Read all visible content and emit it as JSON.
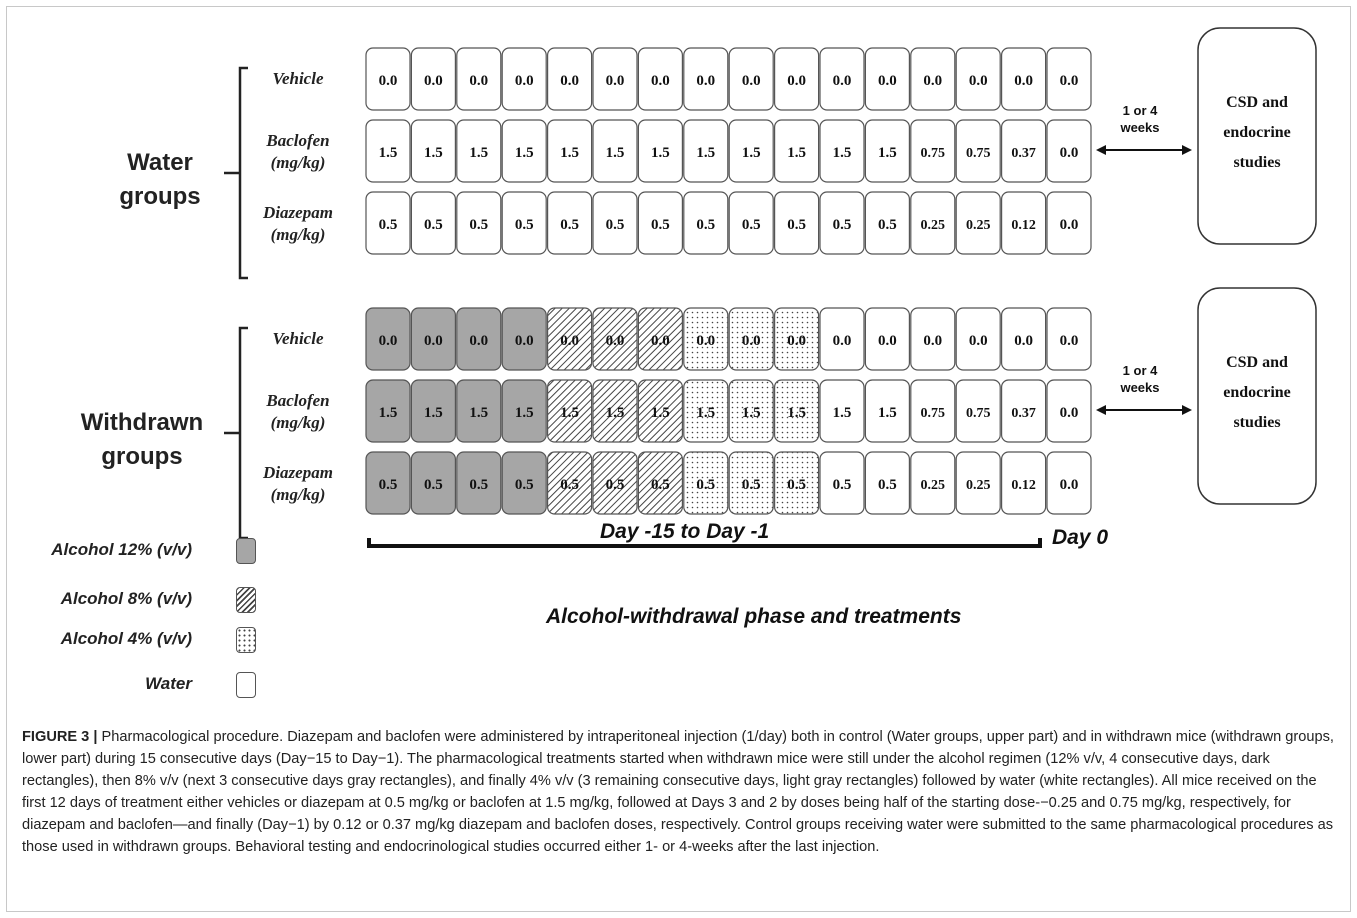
{
  "legend": [
    {
      "label": "Alcohol 12% (v/v)",
      "fill": "#a6a6a6",
      "pattern": "solid"
    },
    {
      "label": "Alcohol  8% (v/v)",
      "fill": "#ffffff",
      "pattern": "hatch"
    },
    {
      "label": "Alcohol 4% (v/v)",
      "fill": "#ffffff",
      "pattern": "dots"
    },
    {
      "label": "Water",
      "fill": "#ffffff",
      "pattern": "none"
    }
  ],
  "groups": [
    {
      "label_line1": "Water",
      "label_line2": "groups",
      "gap_line1": "1 or 4",
      "gap_line2": "weeks",
      "study_line1": "CSD and",
      "study_line2": "endocrine",
      "study_line3": "studies",
      "rows": [
        {
          "line1": "Vehicle",
          "line2": "",
          "values": [
            "0.0",
            "0.0",
            "0.0",
            "0.0",
            "0.0",
            "0.0",
            "0.0",
            "0.0",
            "0.0",
            "0.0",
            "0.0",
            "0.0",
            "0.0",
            "0.0",
            "0.0",
            "0.0"
          ]
        },
        {
          "line1": "Baclofen",
          "line2": "(mg/kg)",
          "values": [
            "1.5",
            "1.5",
            "1.5",
            "1.5",
            "1.5",
            "1.5",
            "1.5",
            "1.5",
            "1.5",
            "1.5",
            "1.5",
            "1.5",
            "0.75",
            "0.75",
            "0.37",
            "0.0"
          ]
        },
        {
          "line1": "Diazepam",
          "line2": "(mg/kg)",
          "values": [
            "0.5",
            "0.5",
            "0.5",
            "0.5",
            "0.5",
            "0.5",
            "0.5",
            "0.5",
            "0.5",
            "0.5",
            "0.5",
            "0.5",
            "0.25",
            "0.25",
            "0.12",
            "0.0"
          ]
        }
      ],
      "cell_patterns": [
        "none",
        "none",
        "none",
        "none",
        "none",
        "none",
        "none",
        "none",
        "none",
        "none",
        "none",
        "none",
        "none",
        "none",
        "none",
        "none"
      ]
    },
    {
      "label_line1": "Withdrawn",
      "label_line2": "groups",
      "gap_line1": "1 or 4",
      "gap_line2": "weeks",
      "study_line1": "CSD and",
      "study_line2": "endocrine",
      "study_line3": "studies",
      "rows": [
        {
          "line1": "Vehicle",
          "line2": "",
          "values": [
            "0.0",
            "0.0",
            "0.0",
            "0.0",
            "0.0",
            "0.0",
            "0.0",
            "0.0",
            "0.0",
            "0.0",
            "0.0",
            "0.0",
            "0.0",
            "0.0",
            "0.0",
            "0.0"
          ]
        },
        {
          "line1": "Baclofen",
          "line2": "(mg/kg)",
          "values": [
            "1.5",
            "1.5",
            "1.5",
            "1.5",
            "1.5",
            "1.5",
            "1.5",
            "1.5",
            "1.5",
            "1.5",
            "1.5",
            "1.5",
            "0.75",
            "0.75",
            "0.37",
            "0.0"
          ]
        },
        {
          "line1": "Diazepam",
          "line2": "(mg/kg)",
          "values": [
            "0.5",
            "0.5",
            "0.5",
            "0.5",
            "0.5",
            "0.5",
            "0.5",
            "0.5",
            "0.5",
            "0.5",
            "0.5",
            "0.5",
            "0.25",
            "0.25",
            "0.12",
            "0.0"
          ]
        }
      ],
      "cell_patterns": [
        "solid",
        "solid",
        "solid",
        "solid",
        "hatch",
        "hatch",
        "hatch",
        "dots",
        "dots",
        "dots",
        "none",
        "none",
        "none",
        "none",
        "none",
        "none"
      ]
    }
  ],
  "timeline": {
    "range_label": "Day -15 to Day -1",
    "end_label": "Day 0",
    "title": "Alcohol-withdrawal phase and treatments"
  },
  "caption": {
    "head": "FIGURE 3 |",
    "text": " Pharmacological procedure. Diazepam and baclofen were administered by intraperitoneal injection (1/day) both in control (Water groups, upper part) and in withdrawn mice (withdrawn groups, lower part) during 15 consecutive days (Day−15 to Day−1). The pharmacological treatments started when withdrawn mice were still under the alcohol regimen (12% v/v, 4 consecutive days, dark rectangles), then 8% v/v (next 3 consecutive days gray rectangles), and finally 4% v/v (3 remaining consecutive days, light gray rectangles) followed by water (white rectangles). All mice received on the first 12 days of treatment either vehicles or diazepam at 0.5 mg/kg or baclofen at 1.5 mg/kg, followed at Days 3 and 2 by doses being half of the starting dose-−0.25 and 0.75 mg/kg, respectively, for diazepam and baclofen—and finally (Day−1) by 0.12 or 0.37 mg/kg diazepam and baclofen doses, respectively. Control groups receiving water were submitted to the same pharmacological procedures as those used in withdrawn groups. Behavioral testing and endocrinological studies occurred either 1- or 4-weeks after the last injection."
  }
}
